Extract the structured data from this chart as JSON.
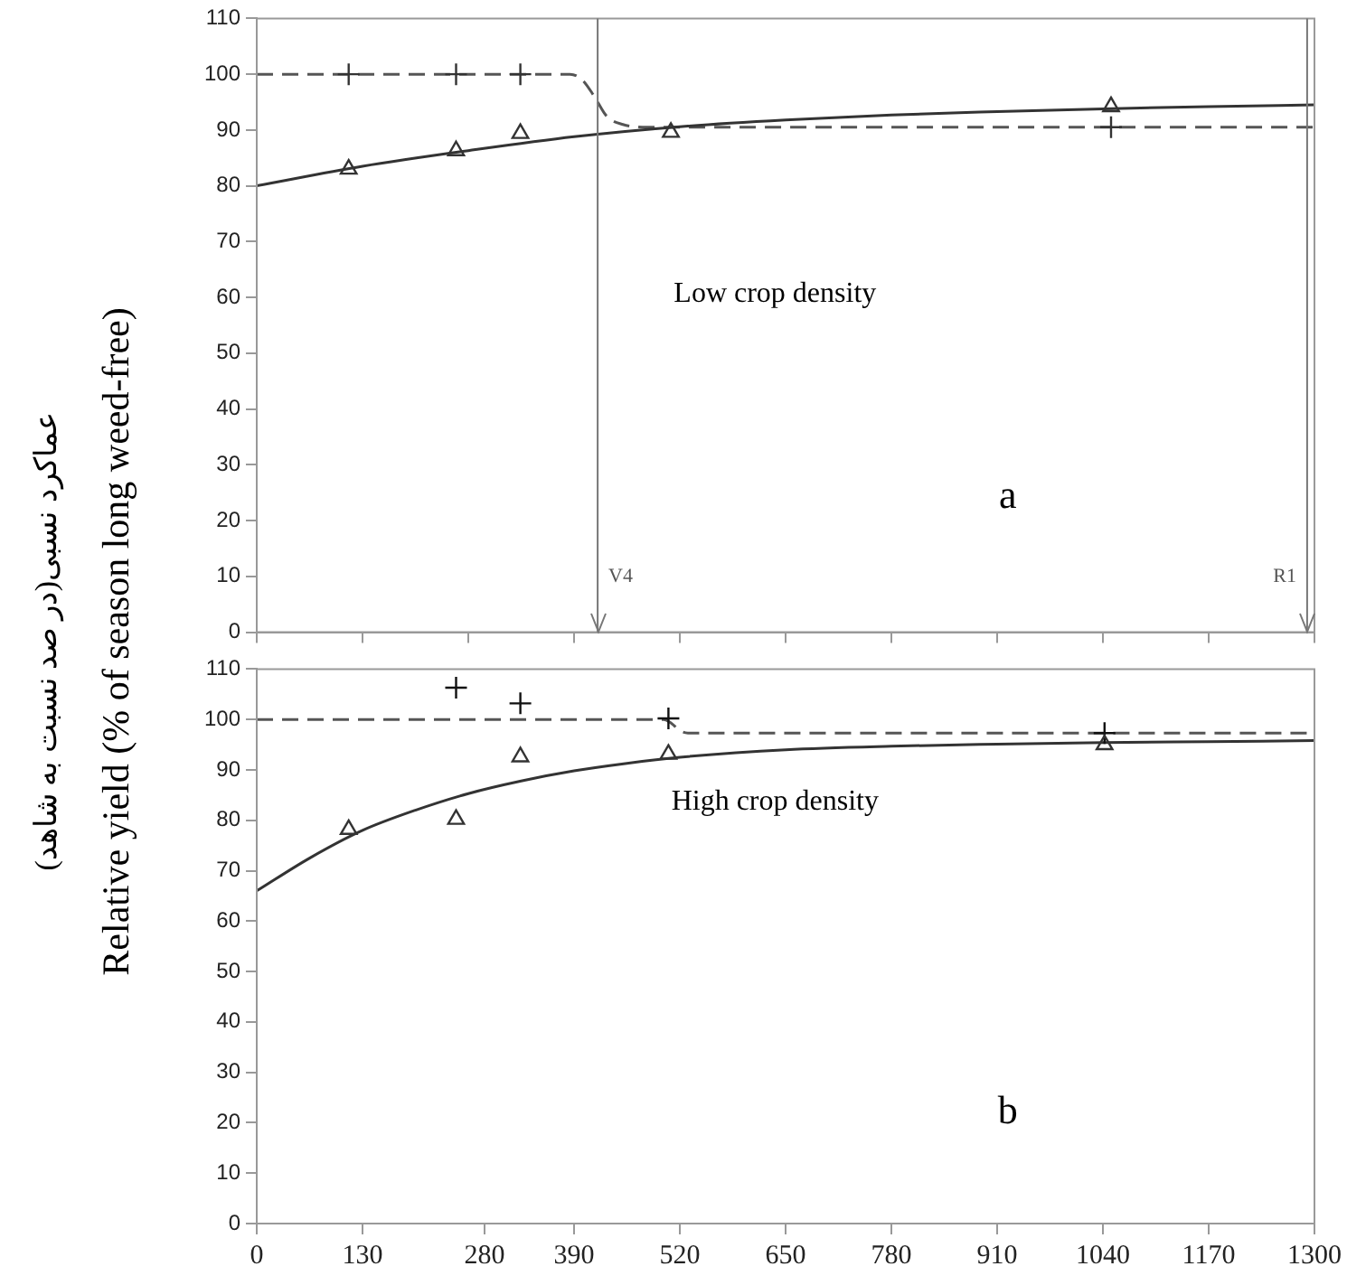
{
  "chart_data": [
    {
      "type": "scatter",
      "ylabel": "عماکرد نسبی(در صد نسبت به شاهد)\nRelative yield (% of season long weed-free)",
      "xlim": [
        0,
        1300
      ],
      "xticks": [
        0,
        130,
        260,
        390,
        520,
        650,
        780,
        910,
        1040,
        1170,
        1300
      ],
      "ylim": [
        0,
        110
      ],
      "yticks": [
        0,
        10,
        20,
        30,
        40,
        50,
        60,
        70,
        80,
        90,
        100,
        110
      ],
      "tick_labels": "y",
      "grid": false,
      "legend": false,
      "series": [
        {
          "type": "scatter",
          "marker": "triangle",
          "color": "#333333",
          "x": [
            113,
            245,
            324,
            509,
            1050
          ],
          "values": [
            83,
            86.3,
            89.4,
            89.6,
            94.2
          ]
        },
        {
          "type": "scatter",
          "marker": "cross",
          "color": "#333333",
          "x": [
            113,
            245,
            324,
            1050
          ],
          "values": [
            100,
            100,
            100,
            90.5
          ]
        },
        {
          "type": "line",
          "marker": "none",
          "line_style": "solid",
          "color": "#333333",
          "x": [
            0,
            130,
            260,
            390,
            520,
            650,
            780,
            910,
            1040,
            1170,
            1300
          ],
          "values": [
            80,
            83.5,
            86.3,
            88.8,
            90.6,
            91.8,
            92.7,
            93.3,
            93.8,
            94.2,
            94.5
          ]
        },
        {
          "type": "line",
          "marker": "none",
          "line_style": "dashed",
          "color": "#555555",
          "x": [
            0,
            385,
            400,
            415,
            430,
            450,
            480,
            1300
          ],
          "values": [
            100,
            100,
            99,
            96,
            92.5,
            91,
            90.5,
            90.5
          ]
        }
      ],
      "ref_lines": [
        {
          "axis": "x",
          "value": 419,
          "label": "V4",
          "color": "#777777"
        },
        {
          "axis": "x",
          "value": 1291,
          "label": "R1",
          "color": "#777777"
        }
      ],
      "annotations": [
        "Low crop density",
        "a"
      ]
    },
    {
      "type": "scatter",
      "xlim": [
        0,
        1300
      ],
      "xticks": [
        0,
        130,
        280,
        390,
        520,
        650,
        780,
        910,
        1040,
        1170,
        1300
      ],
      "ylim": [
        0,
        110
      ],
      "yticks": [
        0,
        10,
        20,
        30,
        40,
        50,
        60,
        70,
        80,
        90,
        100,
        110
      ],
      "grid": false,
      "legend": false,
      "series": [
        {
          "type": "scatter",
          "marker": "triangle",
          "color": "#333333",
          "x": [
            113,
            245,
            324,
            506,
            1042
          ],
          "values": [
            78.2,
            80.2,
            92.6,
            93.1,
            95
          ]
        },
        {
          "type": "scatter",
          "marker": "cross",
          "color": "#111111",
          "x": [
            245,
            324,
            506,
            1042
          ],
          "values": [
            106.3,
            103.2,
            100.2,
            97.3
          ]
        },
        {
          "type": "line",
          "marker": "none",
          "line_style": "solid",
          "color": "#333333",
          "x": [
            0,
            65,
            130,
            195,
            260,
            325,
            390,
            455,
            520,
            650,
            780,
            910,
            1040,
            1170,
            1300
          ],
          "values": [
            66,
            72.5,
            78,
            82,
            85.3,
            87.8,
            89.8,
            91.3,
            92.5,
            94,
            94.7,
            95.1,
            95.4,
            95.6,
            95.8
          ]
        },
        {
          "type": "line",
          "marker": "none",
          "line_style": "dashed",
          "color": "#555555",
          "x": [
            0,
            500,
            510,
            520,
            530,
            1300
          ],
          "values": [
            100,
            100,
            99.2,
            97.8,
            97.3,
            97.3
          ]
        }
      ],
      "annotations": [
        "High crop density",
        "b"
      ]
    }
  ]
}
